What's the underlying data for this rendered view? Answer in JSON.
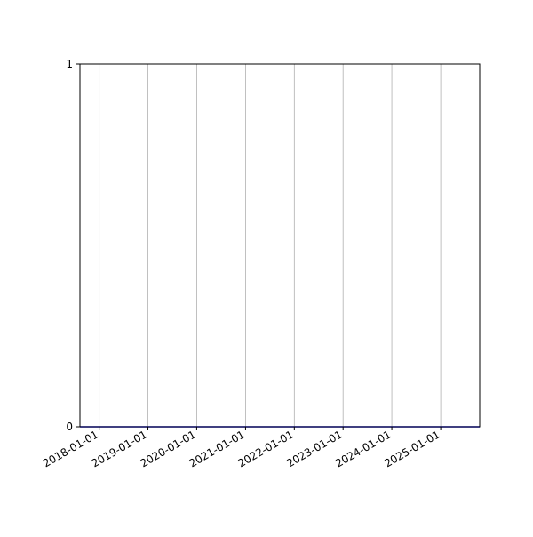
{
  "chart_data": {
    "type": "line",
    "title": "",
    "xlabel": "",
    "ylabel": "",
    "x_type": "date",
    "xlim": [
      "2017-08-10",
      "2025-10-20"
    ],
    "ylim": [
      0,
      1
    ],
    "x_ticks": [
      "2018-01-01",
      "2019-01-01",
      "2020-01-01",
      "2021-01-01",
      "2022-01-01",
      "2023-01-01",
      "2024-01-01",
      "2025-01-01"
    ],
    "y_ticks": [
      "0",
      "1"
    ],
    "grid": {
      "x": true,
      "y": false
    },
    "series": [
      {
        "color": "#0000ff",
        "x": [
          "2017-08-10",
          "2025-10-20"
        ],
        "y": [
          0,
          0
        ]
      }
    ]
  }
}
